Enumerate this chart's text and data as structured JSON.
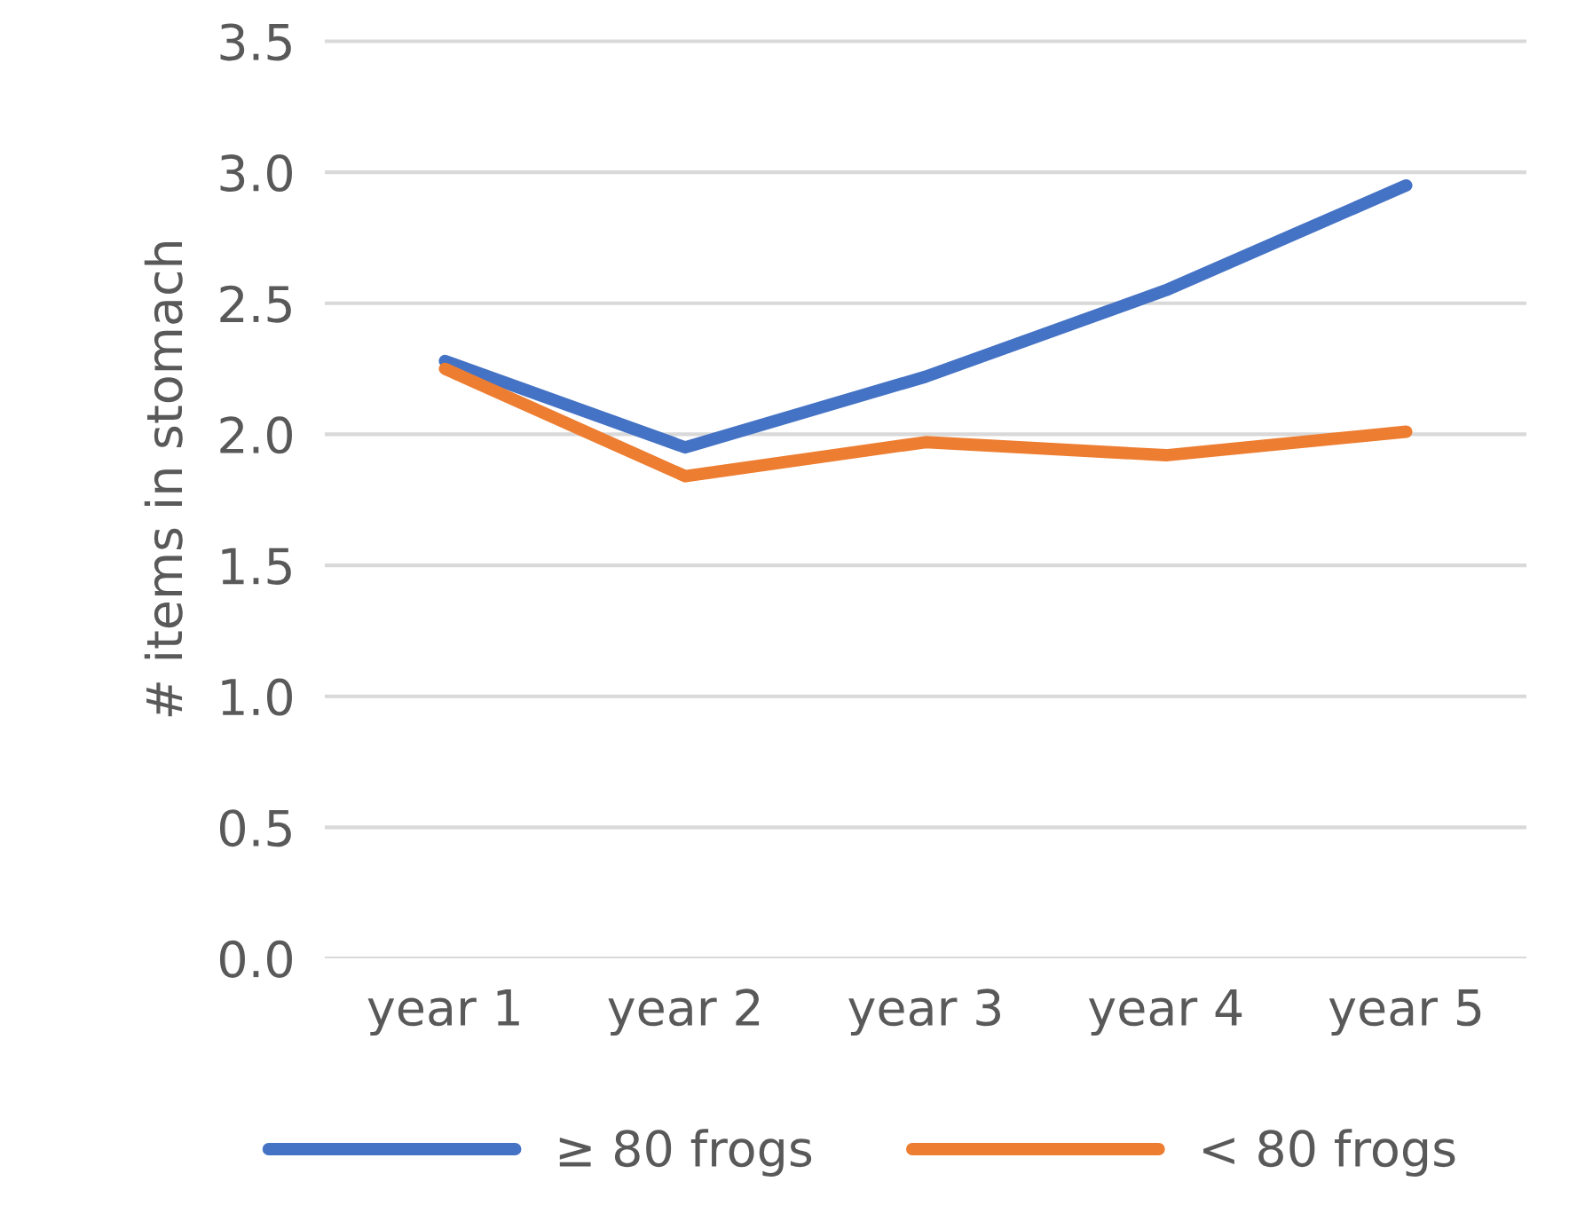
{
  "chart_data": {
    "type": "line",
    "ylabel": "# items in stomach",
    "categories": [
      "year 1",
      "year 2",
      "year 3",
      "year 4",
      "year 5"
    ],
    "series": [
      {
        "name": "≥ 80 frogs",
        "color": "#4472c4",
        "values": [
          2.28,
          1.95,
          2.22,
          2.55,
          2.95
        ]
      },
      {
        "name": "< 80 frogs",
        "color": "#ed7d31",
        "values": [
          2.25,
          1.84,
          1.97,
          1.92,
          2.01
        ]
      }
    ],
    "ylim": [
      0,
      3.5
    ],
    "yticks": [
      {
        "value": 0,
        "label": "0.0"
      },
      {
        "value": 0.5,
        "label": "0.5"
      },
      {
        "value": 1,
        "label": "1.0"
      },
      {
        "value": 1.5,
        "label": "1.5"
      },
      {
        "value": 2,
        "label": "2.0"
      },
      {
        "value": 2.5,
        "label": "2.5"
      },
      {
        "value": 3,
        "label": "3.0"
      },
      {
        "value": 3.5,
        "label": "3.5"
      }
    ],
    "grid": "y",
    "legend": "bottom"
  }
}
